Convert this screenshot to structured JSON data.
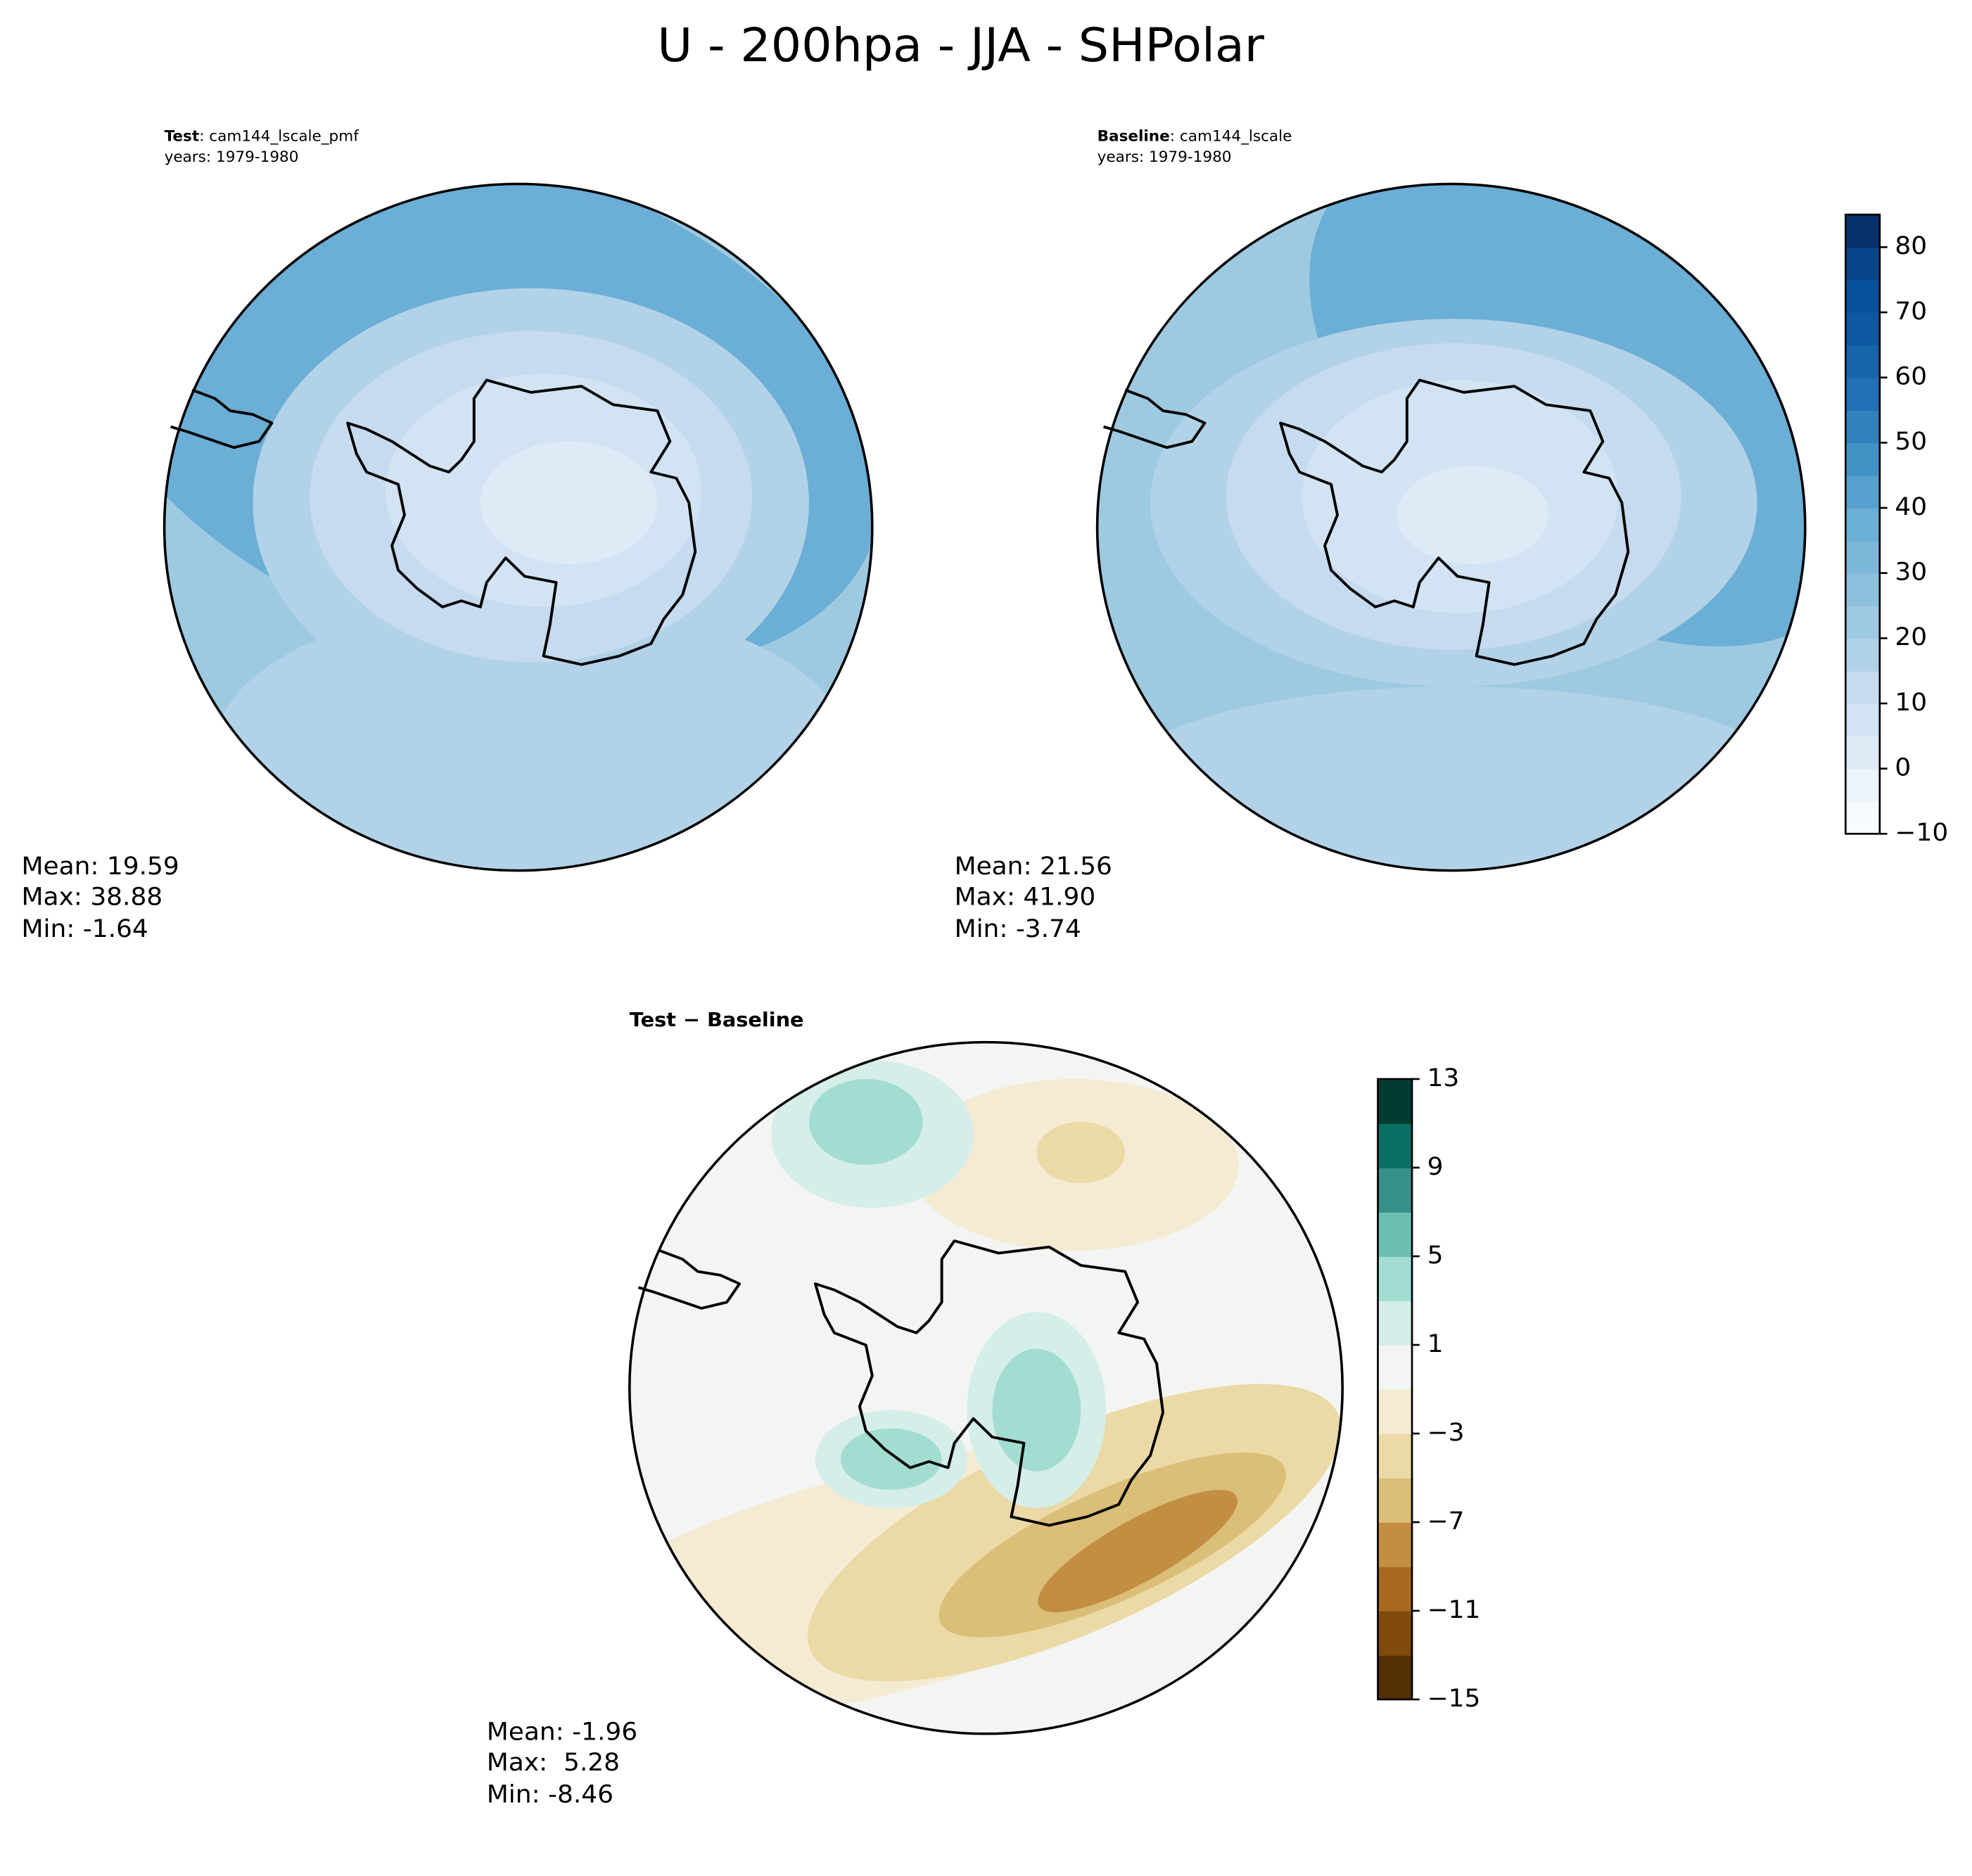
{
  "title": "U - 200hpa - JJA - SHPolar",
  "panels": [
    {
      "label": "Test",
      "case": ": cam144_lscale_pmf",
      "years": "years: 1979-1980",
      "stats": [
        "Mean: 19.59",
        "Max: 38.88",
        "Min: -1.64"
      ]
    },
    {
      "label": "Baseline",
      "case": ": cam144_lscale",
      "years": "years: 1979-1980",
      "stats": [
        "Mean: 21.56",
        "Max: 41.90",
        "Min: -3.74"
      ]
    },
    {
      "label": "Test − Baseline",
      "stats": [
        "Mean: -1.96",
        "Max:  5.28",
        "Min: -8.46"
      ]
    }
  ],
  "colorbars": [
    {
      "lim": [
        -10,
        85
      ],
      "ticks": [
        {
          "value": -10,
          "label": "−10"
        },
        0,
        10,
        20,
        30,
        40,
        50,
        60,
        70,
        80
      ],
      "colors": [
        "#f7fbff",
        "#ebf3fb",
        "#deebf7",
        "#d2e3f3",
        "#c6dbef",
        "#b2d2e8",
        "#9ecae1",
        "#8dc0dd",
        "#7cb7da",
        "#6baed6",
        "#57a0ce",
        "#4292c6",
        "#3282be",
        "#2171b5",
        "#1764ab",
        "#0d58a1",
        "#08519c",
        "#08458a",
        "#08306b"
      ]
    },
    {
      "lim": [
        -15,
        13
      ],
      "ticks": [
        {
          "value": -15,
          "label": "−15"
        },
        {
          "value": -11,
          "label": "−11"
        },
        {
          "value": -7,
          "label": "−7"
        },
        {
          "value": -3,
          "label": "−3"
        },
        1,
        5,
        9,
        13
      ],
      "colors": [
        "#543005",
        "#7f4a0b",
        "#a6691e",
        "#c28e42",
        "#dbbe78",
        "#ebd9a6",
        "#f5ebd3",
        "#f3f5f3",
        "#d5eeea",
        "#a3ddd2",
        "#6cbfb3",
        "#359087",
        "#0a6e64",
        "#003c30"
      ]
    }
  ]
}
